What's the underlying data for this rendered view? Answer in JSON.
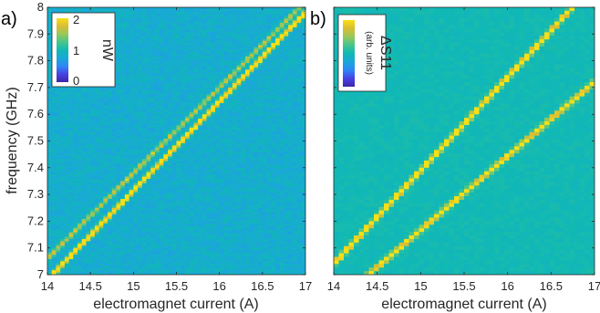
{
  "panel_labels": [
    "a)",
    "b)"
  ],
  "colormap": [
    "#3e26a8",
    "#4742e5",
    "#2e87f7",
    "#1aa7d9",
    "#10b9b4",
    "#47c58c",
    "#97c85a",
    "#dabd33",
    "#f9e015"
  ],
  "chart_data": [
    {
      "type": "heatmap",
      "panel": "a)",
      "xlabel": "electromagnet current (A)",
      "ylabel": "frequency (GHz)",
      "xlim": [
        14,
        17
      ],
      "ylim": [
        7,
        8
      ],
      "xticks": [
        14,
        14.5,
        15,
        15.5,
        16,
        16.5,
        17
      ],
      "xtick_labels": [
        "14",
        "14.5",
        "15",
        "15.5",
        "16",
        "16.5",
        "17"
      ],
      "yticks": [
        7,
        7.1,
        7.2,
        7.3,
        7.4,
        7.5,
        7.6,
        7.7,
        7.8,
        7.9,
        8
      ],
      "ytick_labels": [
        "7",
        "7.1",
        "7.2",
        "7.3",
        "7.4",
        "7.5",
        "7.6",
        "7.7",
        "7.8",
        "7.9",
        "8"
      ],
      "colorbar": {
        "label": "nW",
        "ticks": [
          "0",
          "1",
          "2"
        ],
        "range": [
          0,
          2
        ],
        "placement": "top-left"
      },
      "background_level": 0.42,
      "resonance_lines": [
        {
          "x": [
            14.0,
            17.0
          ],
          "y": [
            6.98,
            7.98
          ],
          "peak": 2.0
        },
        {
          "x": [
            14.0,
            17.0
          ],
          "y": [
            7.06,
            8.02
          ],
          "peak": 1.0
        }
      ]
    },
    {
      "type": "heatmap",
      "panel": "b)",
      "xlabel": "electromagnet current (A)",
      "ylabel": "",
      "xlim": [
        14,
        17
      ],
      "ylim": [
        7,
        8
      ],
      "xticks": [
        14,
        14.5,
        15,
        15.5,
        16,
        16.5,
        17
      ],
      "xtick_labels": [
        "14",
        "14.5",
        "15",
        "15.5",
        "16",
        "16.5",
        "17"
      ],
      "colorbar": {
        "label": "ΔS11",
        "sublabel": "(arb. units)",
        "ticks": [],
        "placement": "top-left"
      },
      "background_level": 0.5,
      "resonance_lines": [
        {
          "x": [
            14.0,
            16.75
          ],
          "y": [
            7.04,
            8.0
          ],
          "peak": 1.0
        },
        {
          "x": [
            14.4,
            17.0
          ],
          "y": [
            7.0,
            7.72
          ],
          "peak": 0.72
        }
      ]
    }
  ]
}
